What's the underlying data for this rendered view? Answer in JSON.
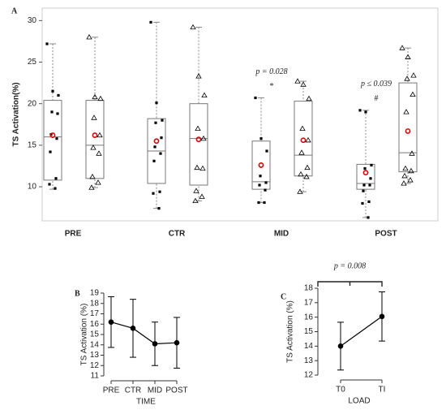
{
  "chart_data": [
    {
      "type": "box",
      "label": "A",
      "ylabel": "TS Activation(%)",
      "categories": [
        "PRE",
        "CTR",
        "MID",
        "POST"
      ],
      "ylim": [
        5.9,
        31.5
      ],
      "yticks": [
        10,
        15,
        20,
        25,
        30
      ],
      "series": [
        {
          "marker": "square",
          "color": "#000000",
          "mean_color": "#e00000",
          "boxes": [
            {
              "min": 9.7,
              "q1": 10.8,
              "median": 16.0,
              "q3": 20.4,
              "max": 27.2,
              "mean": 16.2,
              "points": [
                27.2,
                21.5,
                21.0,
                19.0,
                18.8,
                16.3,
                15.8,
                14.2,
                11.0,
                10.3,
                9.8
              ]
            },
            {
              "min": 7.4,
              "q1": 10.4,
              "median": 14.3,
              "q3": 18.2,
              "max": 29.8,
              "mean": 15.5,
              "points": [
                29.8,
                20.1,
                18.0,
                17.7,
                15.9,
                14.8,
                14.0,
                13.1,
                9.4,
                9.2,
                7.4
              ]
            },
            {
              "min": 8.1,
              "q1": 9.7,
              "median": 10.6,
              "q3": 15.5,
              "max": 20.7,
              "mean": 12.6,
              "points": [
                20.7,
                15.8,
                14.3,
                11.3,
                10.5,
                10.2,
                9.6,
                8.1,
                8.1
              ]
            },
            {
              "min": 6.3,
              "q1": 9.7,
              "median": 10.4,
              "q3": 12.7,
              "max": 19.2,
              "mean": 11.7,
              "points": [
                19.2,
                19.0,
                12.6,
                12.2,
                11.0,
                10.2,
                10.2,
                9.5,
                8.2,
                8.0,
                6.3
              ]
            }
          ]
        },
        {
          "marker": "triangle",
          "color": "#000000",
          "mean_color": "#e00000",
          "boxes": [
            {
              "min": 9.9,
              "q1": 11.0,
              "median": 15.0,
              "q3": 20.4,
              "max": 28.0,
              "mean": 16.2,
              "points": [
                28.0,
                20.8,
                20.6,
                18.3,
                16.2,
                14.7,
                14.0,
                11.2,
                10.5,
                9.9
              ]
            },
            {
              "min": 8.3,
              "q1": 10.2,
              "median": 15.8,
              "q3": 20.0,
              "max": 29.2,
              "mean": 15.7,
              "points": [
                29.2,
                23.3,
                21.0,
                17.0,
                15.8,
                12.3,
                12.2,
                9.5,
                8.8,
                8.3
              ]
            },
            {
              "min": 9.4,
              "q1": 11.3,
              "median": 13.8,
              "q3": 20.3,
              "max": 22.7,
              "mean": 15.6,
              "points": [
                22.7,
                22.3,
                20.6,
                17.0,
                15.6,
                14.1,
                12.3,
                11.5,
                11.2,
                9.4
              ]
            },
            {
              "min": 10.4,
              "q1": 11.8,
              "median": 14.1,
              "q3": 22.5,
              "max": 26.7,
              "mean": 16.7,
              "points": [
                26.7,
                25.6,
                23.4,
                23.0,
                21.1,
                19.0,
                14.0,
                12.2,
                11.9,
                11.3,
                10.8,
                10.4
              ]
            }
          ]
        }
      ],
      "annotations": [
        {
          "text": "p = 0.028",
          "symbol": "*"
        },
        {
          "text": "p ≤ 0.039",
          "symbol": "#"
        }
      ]
    },
    {
      "type": "errorline",
      "label": "B",
      "ylabel": "TS Activation (%)",
      "xlabel": "TIME",
      "categories": [
        "PRE",
        "CTR",
        "MID",
        "POST"
      ],
      "values": [
        16.2,
        15.6,
        14.1,
        14.2
      ],
      "errors": [
        2.45,
        2.8,
        2.1,
        2.45
      ],
      "color": "#000000",
      "ylim": [
        11,
        19
      ],
      "yticks": [
        11,
        12,
        13,
        14,
        15,
        16,
        17,
        18,
        19
      ]
    },
    {
      "type": "errorline",
      "label": "C",
      "ylabel": "TS Activation (%)",
      "xlabel": "LOAD",
      "categories": [
        "T0",
        "TI"
      ],
      "values": [
        14.0,
        16.05
      ],
      "errors": [
        1.65,
        1.7
      ],
      "color": "#000000",
      "ylim": [
        12,
        18
      ],
      "yticks": [
        12,
        13,
        14,
        15,
        16,
        17,
        18
      ],
      "annotations": [
        {
          "text": "p = 0.008"
        }
      ]
    }
  ]
}
